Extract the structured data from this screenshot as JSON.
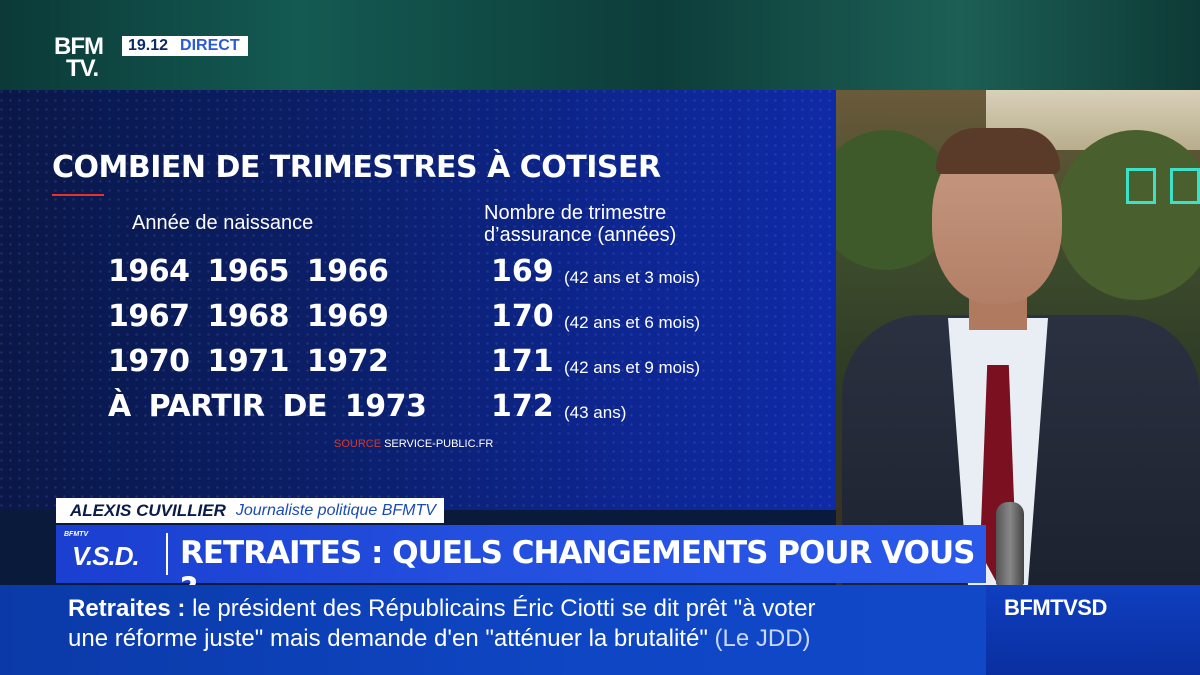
{
  "broadcast": {
    "logo_top": "BFM",
    "logo_bottom": "TV.",
    "time": "19.12",
    "live_label": "DIRECT"
  },
  "infographic": {
    "title": "COMBIEN DE TRIMESTRES À COTISER",
    "col_left": "Année de naissance",
    "col_right_l1": "Nombre de trimestre",
    "col_right_l2": "d’assurance (années)",
    "rows": [
      {
        "years": "1964  1965  1966",
        "quarters": "169",
        "duration": "(42 ans et 3 mois)"
      },
      {
        "years": "1967  1968  1969",
        "quarters": "170",
        "duration": "(42 ans et 6 mois)"
      },
      {
        "years": "1970  1971  1972",
        "quarters": "171",
        "duration": "(42 ans et 9 mois)"
      },
      {
        "years": "À PARTIR DE 1973",
        "quarters": "172",
        "duration": "(43 ans)"
      }
    ],
    "source_label": "SOURCE",
    "source_value": "SERVICE-PUBLIC.FR"
  },
  "name_strap": {
    "name": "ALEXIS CUVILLIER",
    "role": "Journaliste politique BFMTV"
  },
  "headline": {
    "show_mini": "BFMTV",
    "show": "V.S.D.",
    "text": "RETRAITES : QUELS CHANGEMENTS POUR VOUS ?"
  },
  "ticker": {
    "keyword": "Retraites",
    "colon": ":",
    "line1": "le président des Républicains Éric Ciotti se dit prêt \"à voter",
    "line2": "une réforme juste\" mais demande d'en \"atténuer la brutalité\"",
    "source": "(Le JDD)",
    "channel": "BFMTVSD"
  },
  "colors": {
    "accent_red": "#e6332a",
    "brand_blue": "#2450e0",
    "panel_blue": "#0d2691"
  }
}
